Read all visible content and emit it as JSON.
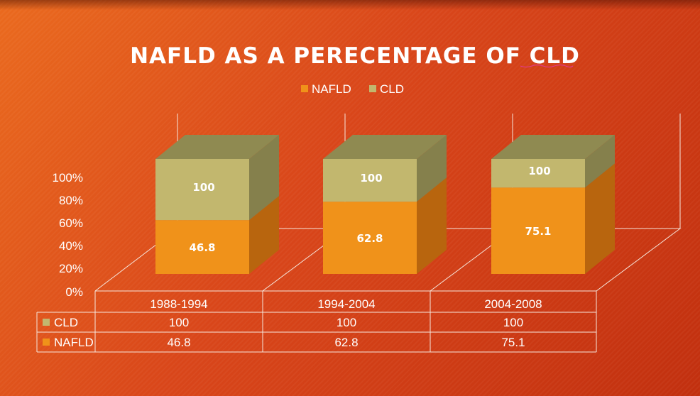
{
  "chart_data": {
    "type": "bar",
    "title": "NAFLD AS A PERECENTAGE OF CLD",
    "categories": [
      "1988-1994",
      "1994-2004",
      "2004-2008"
    ],
    "series": [
      {
        "name": "NAFLD",
        "values": [
          46.8,
          62.8,
          75.1
        ],
        "color": "#f0921a",
        "color_side": "#b8650e",
        "color_top": "#d07a14"
      },
      {
        "name": "CLD",
        "values": [
          100,
          100,
          100
        ],
        "color": "#c2b76e",
        "color_side": "#85804c",
        "color_top": "#8f8a51"
      }
    ],
    "stacking": "100% stacked",
    "y_ticks": [
      "0%",
      "20%",
      "40%",
      "60%",
      "80%",
      "100%"
    ],
    "ylim": [
      0,
      1
    ],
    "legend_position": "top",
    "data_table": true,
    "style": "3d"
  }
}
